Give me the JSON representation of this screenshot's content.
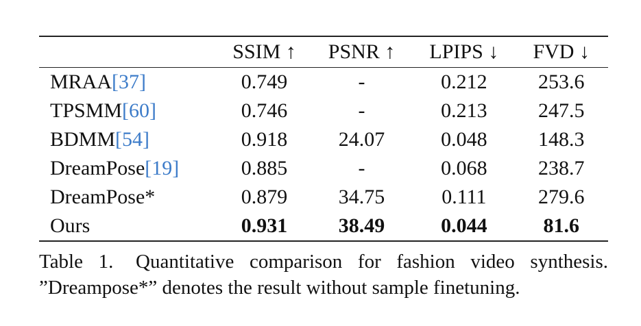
{
  "table": {
    "headers": [
      {
        "key": "ssim",
        "label": "SSIM ↑"
      },
      {
        "key": "psnr",
        "label": "PSNR ↑"
      },
      {
        "key": "lpips",
        "label": "LPIPS ↓"
      },
      {
        "key": "fvd",
        "label": "FVD ↓"
      }
    ],
    "rows": [
      {
        "method": "MRAA",
        "cite": "[37]",
        "ssim": "0.749",
        "psnr": "-",
        "lpips": "0.212",
        "fvd": "253.6"
      },
      {
        "method": "TPSMM",
        "cite": "[60]",
        "ssim": "0.746",
        "psnr": "-",
        "lpips": "0.213",
        "fvd": "247.5"
      },
      {
        "method": "BDMM",
        "cite": "[54]",
        "ssim": "0.918",
        "psnr": "24.07",
        "lpips": "0.048",
        "fvd": "148.3"
      },
      {
        "method": "DreamPose",
        "cite": "[19]",
        "ssim": "0.885",
        "psnr": "-",
        "lpips": "0.068",
        "fvd": "238.7"
      },
      {
        "method": "DreamPose*",
        "cite": "",
        "ssim": "0.879",
        "psnr": "34.75",
        "lpips": "0.111",
        "fvd": "279.6"
      },
      {
        "method": "Ours",
        "cite": "",
        "ssim": "0.931",
        "psnr": "38.49",
        "lpips": "0.044",
        "fvd": "81.6",
        "bold": true
      }
    ]
  },
  "caption": {
    "label": "Table 1.",
    "line1": "Quantitative comparison for fashion video synthesis.",
    "line2": "”Dreampose*” denotes the result without sample finetuning."
  },
  "colors": {
    "citation_link": "#3d7cc9",
    "text": "#111111",
    "rule": "#222222"
  }
}
